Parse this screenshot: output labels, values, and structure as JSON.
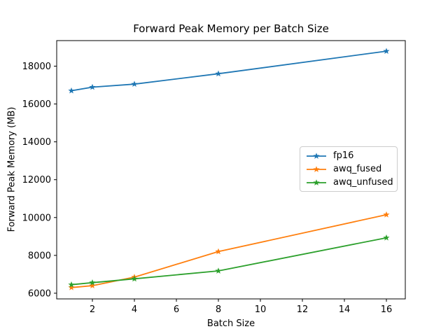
{
  "figure": {
    "background": "#ffffff",
    "text_color": "#000000",
    "frame_color": "#000000",
    "legend_border_color": "#cccccc"
  },
  "chart_data": {
    "type": "line",
    "title": "Forward Peak Memory per Batch Size",
    "xlabel": "Batch Size",
    "ylabel": "Forward Peak Memory (MB)",
    "x": [
      1,
      2,
      4,
      8,
      16
    ],
    "series": [
      {
        "name": "fp16",
        "color": "#1f77b4",
        "marker": "star",
        "values": [
          16700,
          16890,
          17050,
          17600,
          18790
        ]
      },
      {
        "name": "awq_fused",
        "color": "#ff7f0e",
        "marker": "star",
        "values": [
          6300,
          6400,
          6850,
          8200,
          10150
        ]
      },
      {
        "name": "awq_unfused",
        "color": "#2ca02c",
        "marker": "star",
        "values": [
          6450,
          6560,
          6760,
          7180,
          8930
        ]
      }
    ],
    "xlim": [
      0.3,
      16.9
    ],
    "ylim": [
      5700,
      19350
    ],
    "xticks": [
      2,
      4,
      6,
      8,
      10,
      12,
      14,
      16
    ],
    "yticks": [
      6000,
      8000,
      10000,
      12000,
      14000,
      16000,
      18000
    ],
    "grid": false,
    "legend_position": "center-right"
  }
}
